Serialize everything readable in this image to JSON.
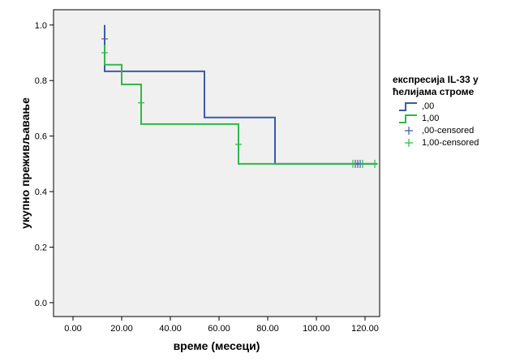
{
  "chart_data": {
    "type": "line",
    "subtype": "kaplan-meier",
    "title": "",
    "xlabel": "време (месеци)",
    "ylabel": "укупно преживљавање",
    "xlim": [
      -8,
      126
    ],
    "ylim": [
      -0.05,
      1.055
    ],
    "x_ticks": [
      "0.00",
      "20.00",
      "40.00",
      "60.00",
      "80.00",
      "100.00",
      "120.00"
    ],
    "x_tick_values": [
      0,
      20,
      40,
      60,
      80,
      100,
      120
    ],
    "y_ticks": [
      "0.0",
      "0.2",
      "0.4",
      "0.6",
      "0.8",
      "1.0"
    ],
    "y_tick_values": [
      0,
      0.2,
      0.4,
      0.6,
      0.8,
      1.0
    ],
    "grid": false,
    "legend_position": "right",
    "legend_title_lines": [
      "експресија IL-33 у",
      "ћелијама строме"
    ],
    "series": [
      {
        "name": ",00",
        "color": "#3a5ba8",
        "x": [
          13,
          13,
          54,
          54,
          83,
          83,
          125
        ],
        "y": [
          1.0,
          0.833,
          0.833,
          0.667,
          0.667,
          0.5,
          0.5
        ]
      },
      {
        "name": "1,00",
        "color": "#2fb84a",
        "x": [
          13,
          13,
          20,
          20,
          28,
          28,
          68,
          68,
          125
        ],
        "y": [
          0.929,
          0.857,
          0.857,
          0.786,
          0.786,
          0.643,
          0.643,
          0.5,
          0.5
        ]
      }
    ],
    "censored": [
      {
        "name": ",00-censored",
        "color": "#3a5ba8",
        "x": [
          13,
          116,
          117,
          118
        ],
        "y": [
          0.95,
          0.5,
          0.5,
          0.5
        ]
      },
      {
        "name": "1,00-censored",
        "color": "#2fb84a",
        "x": [
          13,
          28,
          68,
          115,
          119,
          124
        ],
        "y": [
          0.9,
          0.72,
          0.57,
          0.5,
          0.5,
          0.5
        ]
      }
    ]
  }
}
